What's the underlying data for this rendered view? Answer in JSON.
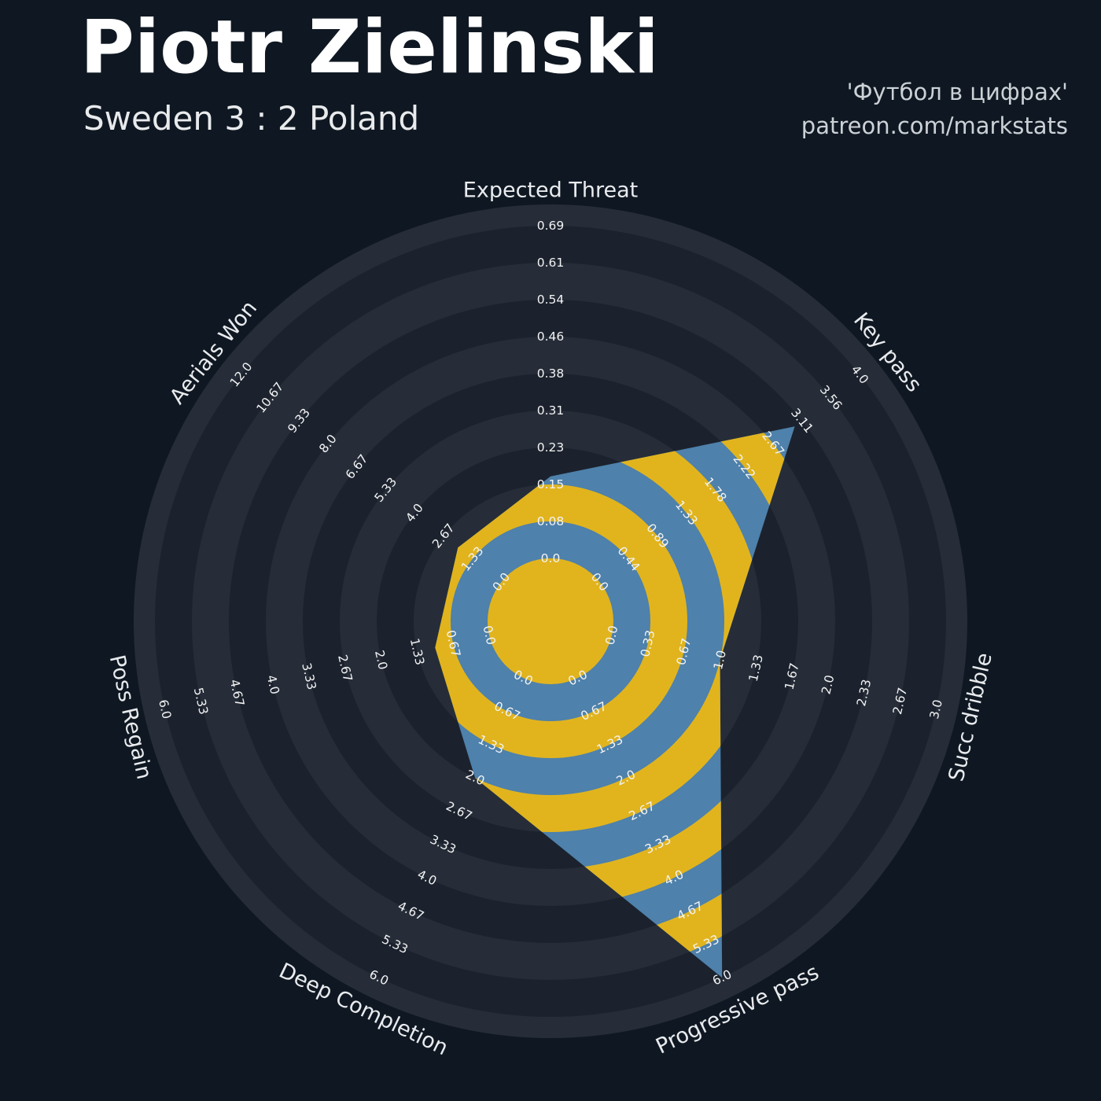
{
  "header": {
    "title": "Piotr Zielinski",
    "subtitle": "Sweden 3 : 2 Poland",
    "credit_line1": "'Футбол в цифрах'",
    "credit_line2": "patreon.com/markstats"
  },
  "chart_data": {
    "type": "radar",
    "title": "Piotr Zielinski",
    "subtitle": "Sweden 3 : 2 Poland",
    "legend_position": "none",
    "grid": "concentric-rings",
    "params": [
      {
        "label": "Expected Threat",
        "min": 0,
        "max": 0.69,
        "value": 0.17,
        "ticks": [
          "0.0",
          "0.08",
          "0.15",
          "0.23",
          "0.31",
          "0.38",
          "0.46",
          "0.54",
          "0.61",
          "0.69"
        ]
      },
      {
        "label": "Key pass",
        "min": 0,
        "max": 4.0,
        "value": 3.0,
        "ticks": [
          "0.0",
          "0.44",
          "0.89",
          "1.33",
          "1.78",
          "2.22",
          "2.67",
          "3.11",
          "3.56",
          "4.0"
        ]
      },
      {
        "label": "Succ dribble",
        "min": 0,
        "max": 3.0,
        "value": 1.0,
        "ticks": [
          "0.0",
          "0.33",
          "0.67",
          "1.0",
          "1.33",
          "1.67",
          "2.0",
          "2.33",
          "2.67",
          "3.0"
        ]
      },
      {
        "label": "Progressive pass",
        "min": 0,
        "max": 6.0,
        "value": 6.0,
        "ticks": [
          "0.0",
          "0.67",
          "1.33",
          "2.0",
          "2.67",
          "3.33",
          "4.0",
          "4.67",
          "5.33",
          "6.0"
        ]
      },
      {
        "label": "Deep Completion",
        "min": 0,
        "max": 6.0,
        "value": 2.0,
        "ticks": [
          "0.0",
          "0.67",
          "1.33",
          "2.0",
          "2.67",
          "3.33",
          "4.0",
          "4.67",
          "5.33",
          "6.0"
        ]
      },
      {
        "label": "Poss Regain",
        "min": 0,
        "max": 6.0,
        "value": 1.0,
        "ticks": [
          "0.0",
          "0.67",
          "1.33",
          "2.0",
          "2.67",
          "3.33",
          "4.0",
          "4.67",
          "5.33",
          "6.0"
        ]
      },
      {
        "label": "Aerials Won",
        "min": 0,
        "max": 12.0,
        "value": 2.0,
        "ticks": [
          "0.0",
          "1.33",
          "2.67",
          "4.0",
          "5.33",
          "6.67",
          "8.0",
          "9.33",
          "10.67",
          "12.0"
        ]
      }
    ],
    "colors": {
      "background": "#0f1822",
      "ring_light": "#262d38",
      "ring_dark": "#1b222d",
      "radar_fill": "#4e81ab",
      "radar_rings": "#e1b41e",
      "tick_text": "#f2f3f4",
      "title_text": "#e9ebee"
    }
  }
}
